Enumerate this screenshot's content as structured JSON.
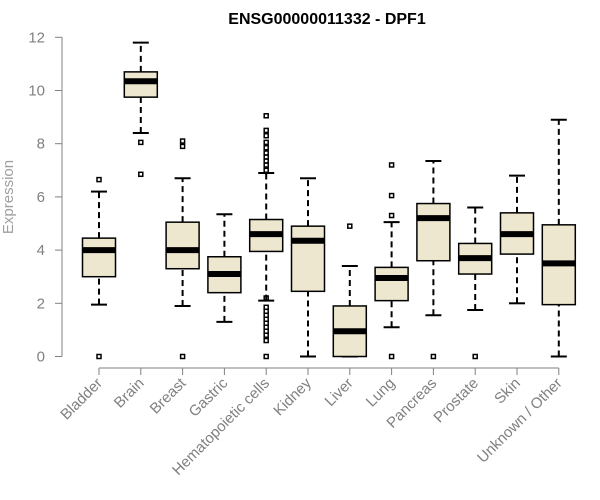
{
  "chart_data": {
    "type": "boxplot",
    "title": "ENSG00000011332 - DPF1",
    "ylabel": "Expression",
    "ylim": [
      0,
      12
    ],
    "yticks": [
      0,
      2,
      4,
      6,
      8,
      10,
      12
    ],
    "categories": [
      "Bladder",
      "Brain",
      "Breast",
      "Gastric",
      "Hematopoietic cells",
      "Kidney",
      "Liver",
      "Lung",
      "Pancreas",
      "Prostate",
      "Skin",
      "Unknown / Other"
    ],
    "boxes": [
      {
        "name": "Bladder",
        "min": 1.95,
        "q1": 3.0,
        "median": 4.0,
        "q3": 4.45,
        "max": 6.2,
        "outliers": [
          0,
          6.65
        ]
      },
      {
        "name": "Brain",
        "min": 8.4,
        "q1": 9.75,
        "median": 10.35,
        "q3": 10.7,
        "max": 11.8,
        "outliers": [
          6.85,
          8.05
        ]
      },
      {
        "name": "Breast",
        "min": 1.9,
        "q1": 3.3,
        "median": 4.0,
        "q3": 5.05,
        "max": 6.7,
        "outliers": [
          0,
          7.9,
          8.1
        ]
      },
      {
        "name": "Gastric",
        "min": 1.3,
        "q1": 2.4,
        "median": 3.1,
        "q3": 3.75,
        "max": 5.35,
        "outliers": []
      },
      {
        "name": "Hematopoietic cells",
        "min": 2.1,
        "q1": 3.95,
        "median": 4.6,
        "q3": 5.15,
        "max": 6.9,
        "outliers": [
          0,
          0.6,
          0.8,
          0.95,
          1.1,
          1.25,
          1.4,
          1.55,
          1.7,
          1.85,
          2.2,
          7.0,
          7.2,
          7.35,
          7.5,
          7.65,
          7.85,
          8.05,
          8.3,
          8.5,
          9.05
        ]
      },
      {
        "name": "Kidney",
        "min": 0,
        "q1": 2.45,
        "median": 4.35,
        "q3": 4.9,
        "max": 6.7,
        "outliers": []
      },
      {
        "name": "Liver",
        "min": 0,
        "q1": 0,
        "median": 0.95,
        "q3": 1.9,
        "max": 3.4,
        "outliers": [
          4.9
        ]
      },
      {
        "name": "Lung",
        "min": 1.1,
        "q1": 2.1,
        "median": 2.95,
        "q3": 3.35,
        "max": 5.05,
        "outliers": [
          0,
          5.3,
          6.05,
          7.2
        ]
      },
      {
        "name": "Pancreas",
        "min": 1.55,
        "q1": 3.6,
        "median": 5.2,
        "q3": 5.75,
        "max": 7.35,
        "outliers": [
          0
        ]
      },
      {
        "name": "Prostate",
        "min": 1.75,
        "q1": 3.1,
        "median": 3.7,
        "q3": 4.25,
        "max": 5.6,
        "outliers": [
          0
        ]
      },
      {
        "name": "Skin",
        "min": 2.0,
        "q1": 3.85,
        "median": 4.6,
        "q3": 5.4,
        "max": 6.8,
        "outliers": []
      },
      {
        "name": "Unknown / Other",
        "min": 0,
        "q1": 1.95,
        "median": 3.5,
        "q3": 4.95,
        "max": 8.9,
        "outliers": []
      }
    ],
    "colors": {
      "box_fill": "#ede7cf",
      "box_stroke": "#000000",
      "axis": "#808080"
    }
  }
}
